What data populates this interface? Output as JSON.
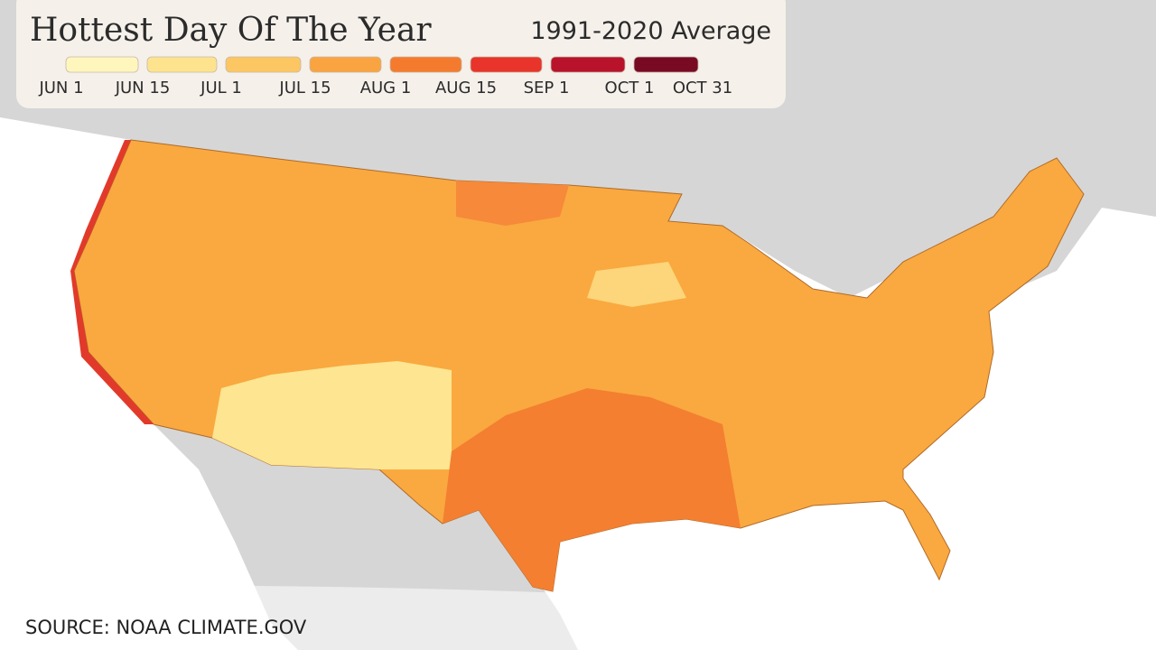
{
  "header": {
    "title": "Hottest Day Of The Year",
    "subtitle": "1991-2020 Average"
  },
  "legend": {
    "labels": [
      "JUN 1",
      "JUN 15",
      "JUL 1",
      "JUL 15",
      "AUG 1",
      "AUG 15",
      "SEP 1",
      "OCT 1",
      "OCT 31"
    ],
    "colors": [
      "#fff6bd",
      "#fde38e",
      "#fcc662",
      "#f9a440",
      "#f47b2e",
      "#e8342a",
      "#b8132b",
      "#780a24"
    ]
  },
  "source": "SOURCE: NOAA CLIMATE.GOV"
}
